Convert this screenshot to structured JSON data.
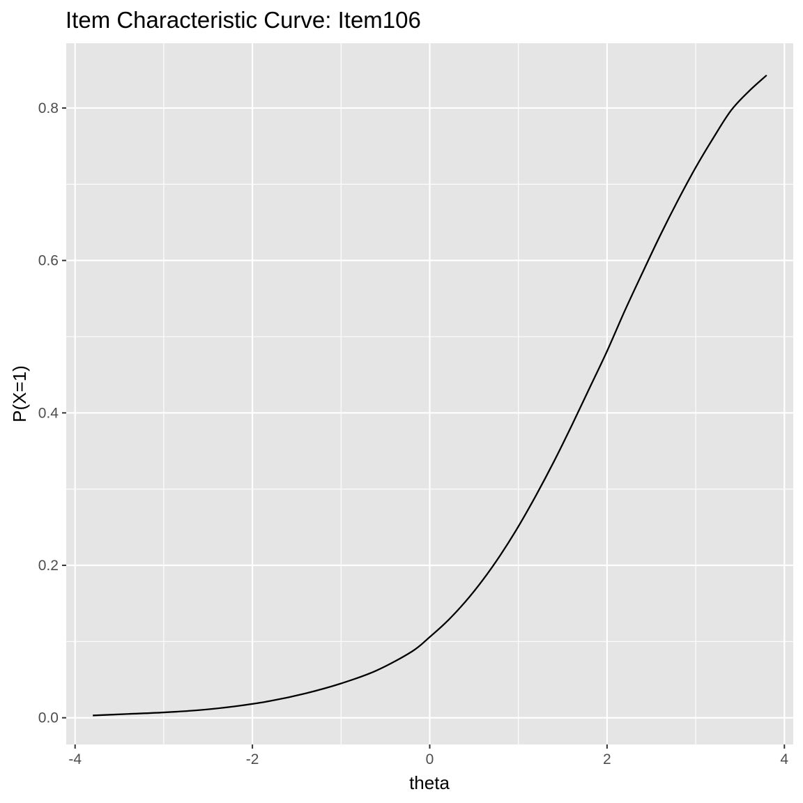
{
  "chart_data": {
    "type": "line",
    "title": "Item Characteristic Curve: Item106",
    "xlabel": "theta",
    "ylabel": "P(X=1)",
    "xlim": [
      -4.1,
      4.1
    ],
    "ylim": [
      -0.035,
      0.885
    ],
    "x_ticks": [
      -4,
      -2,
      0,
      2,
      4
    ],
    "x_tick_labels": [
      "-4",
      "-2",
      "0",
      "2",
      "4"
    ],
    "y_ticks": [
      0.0,
      0.2,
      0.4,
      0.6,
      0.8
    ],
    "y_tick_labels": [
      "0.0",
      "0.2",
      "0.4",
      "0.6",
      "0.8"
    ],
    "grid": true,
    "panel_background": "#e5e5e5",
    "grid_color": "#ffffff",
    "line_color": "#000000",
    "series": [
      {
        "x": [
          -3.8,
          -3.4,
          -3.0,
          -2.6,
          -2.2,
          -1.8,
          -1.4,
          -1.0,
          -0.6,
          -0.2,
          0.0,
          0.2,
          0.4,
          0.6,
          0.8,
          1.0,
          1.2,
          1.4,
          1.6,
          1.8,
          2.0,
          2.2,
          2.4,
          2.6,
          2.8,
          3.0,
          3.2,
          3.4,
          3.6,
          3.8
        ],
        "y": [
          0.003,
          0.005,
          0.007,
          0.01,
          0.015,
          0.022,
          0.032,
          0.045,
          0.062,
          0.087,
          0.106,
          0.127,
          0.152,
          0.181,
          0.214,
          0.251,
          0.292,
          0.336,
          0.383,
          0.432,
          0.481,
          0.534,
          0.584,
          0.633,
          0.679,
          0.722,
          0.761,
          0.797,
          0.822,
          0.843
        ]
      }
    ]
  }
}
